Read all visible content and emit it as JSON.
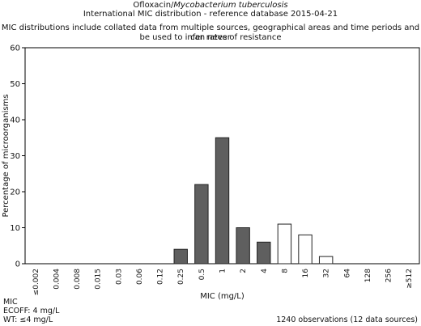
{
  "header": {
    "drug": "Ofloxacin/",
    "organism": "Mycobacterium tuberculosis",
    "subtitle": "International MIC distribution - reference database 2015-04-21",
    "disclaimer_line1": "MIC distributions include collated data from multiple sources, geographical areas and time periods and can never",
    "disclaimer_line2": "be used to infer rates of resistance"
  },
  "footer": {
    "mic": "MIC",
    "ecoff": "ECOFF: 4 mg/L",
    "wt": "WT: ≤4 mg/L",
    "observations": "1240 observations (12 data sources)"
  },
  "colors": {
    "wild_type_fill": "#5f5f5f",
    "non_wild_type_fill": "#ffffff",
    "axis": "#000000"
  },
  "chart_data": {
    "type": "bar",
    "title": "Ofloxacin/Mycobacterium tuberculosis",
    "xlabel": "MIC (mg/L)",
    "ylabel": "Percentage of microorganisms",
    "ylim": [
      0,
      60
    ],
    "yticks": [
      0,
      10,
      20,
      30,
      40,
      50,
      60
    ],
    "grid": false,
    "categories": [
      "≤0.002",
      "0.004",
      "0.008",
      "0.015",
      "0.03",
      "0.06",
      "0.12",
      "0.25",
      "0.5",
      "1",
      "2",
      "4",
      "8",
      "16",
      "32",
      "64",
      "128",
      "256",
      "≥512"
    ],
    "values": [
      0,
      0,
      0,
      0,
      0,
      0,
      0,
      4,
      22,
      35,
      10,
      6,
      11,
      8,
      2,
      0,
      0,
      0,
      0
    ],
    "fill": [
      "wt",
      "wt",
      "wt",
      "wt",
      "wt",
      "wt",
      "wt",
      "wt",
      "wt",
      "wt",
      "wt",
      "wt",
      "nwt",
      "nwt",
      "nwt",
      "nwt",
      "nwt",
      "nwt",
      "nwt"
    ]
  }
}
